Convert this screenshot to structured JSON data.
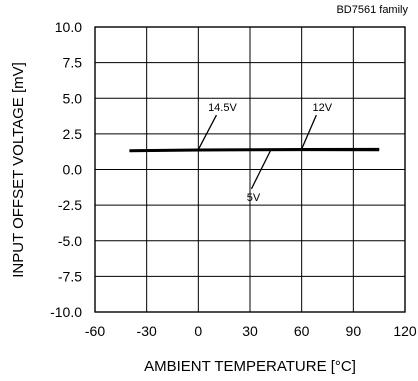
{
  "chart_data": {
    "type": "line",
    "tag": "BD7561 family",
    "xlabel": "AMBIENT TEMPERATURE [°C]",
    "ylabel": "INPUT OFFSET VOLTAGE [mV]",
    "xlim": [
      -60,
      120
    ],
    "ylim": [
      -10,
      10
    ],
    "x_ticks": [
      -60,
      -30,
      0,
      30,
      60,
      90,
      120
    ],
    "y_ticks": [
      10,
      7.5,
      5,
      2.5,
      0,
      -2.5,
      -5,
      -7.5,
      -10
    ],
    "x_tick_labels": [
      "-60",
      "-30",
      "0",
      "30",
      "60",
      "90",
      "120"
    ],
    "y_tick_labels": [
      "10.0",
      "7.5",
      "5.0",
      "2.5",
      "0.0",
      "-2.5",
      "-5.0",
      "-7.5",
      "-10.0"
    ],
    "grid": true,
    "series": [
      {
        "name": "14.5V",
        "x": [
          -40,
          0,
          30,
          60,
          105
        ],
        "y": [
          1.35,
          1.4,
          1.42,
          1.44,
          1.45
        ]
      },
      {
        "name": "12V",
        "x": [
          -40,
          0,
          30,
          60,
          105
        ],
        "y": [
          1.32,
          1.37,
          1.39,
          1.41,
          1.42
        ]
      },
      {
        "name": "5V",
        "x": [
          -40,
          0,
          30,
          60,
          105
        ],
        "y": [
          1.28,
          1.33,
          1.35,
          1.36,
          1.35
        ]
      }
    ],
    "annotations": [
      {
        "text": "14.5V",
        "x": 14,
        "y": 4.1,
        "target_x": 0,
        "target_y": 1.4
      },
      {
        "text": "12V",
        "x": 72,
        "y": 4.1,
        "target_x": 60,
        "target_y": 1.44
      },
      {
        "text": "5V",
        "x": 32,
        "y": -2.2,
        "target_x": 42,
        "target_y": 1.35
      }
    ]
  }
}
